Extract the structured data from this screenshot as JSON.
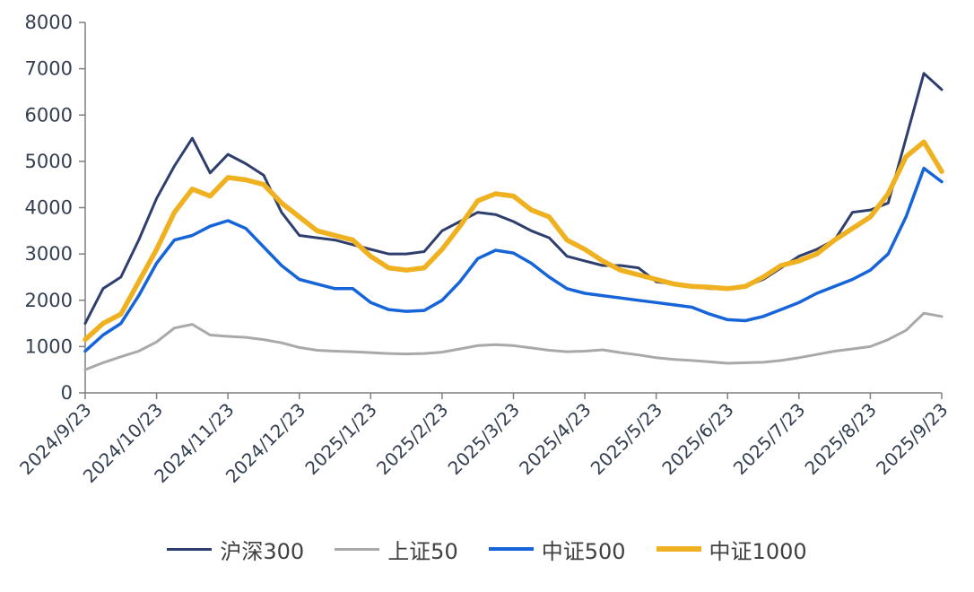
{
  "chart_data": {
    "type": "line",
    "title": "",
    "xlabel": "",
    "ylabel": "",
    "ylim": [
      0,
      8000
    ],
    "y_ticks": [
      0,
      1000,
      2000,
      3000,
      4000,
      5000,
      6000,
      7000,
      8000
    ],
    "grid": false,
    "legend_position": "bottom",
    "x_tick_labels": [
      "2024/9/23",
      "2024/10/23",
      "2024/11/23",
      "2024/12/23",
      "2025/1/23",
      "2025/2/23",
      "2025/3/23",
      "2025/4/23",
      "2025/5/23",
      "2025/6/23",
      "2025/7/23",
      "2025/8/23",
      "2025/9/23"
    ],
    "x_range_months": [
      0,
      12
    ],
    "points_per_month": 4,
    "series": [
      {
        "name": "沪深300",
        "color": "#2e3f6e",
        "width": 3,
        "values": [
          1500,
          2250,
          2500,
          3300,
          4200,
          4900,
          5500,
          4750,
          5150,
          4950,
          4700,
          3900,
          3400,
          3350,
          3300,
          3200,
          3100,
          3000,
          3000,
          3050,
          3500,
          3700,
          3900,
          3850,
          3700,
          3500,
          3350,
          2950,
          2850,
          2750,
          2750,
          2700,
          2400,
          2350,
          2300,
          2250,
          2250,
          2300,
          2450,
          2700,
          2950,
          3100,
          3300,
          3900,
          3950,
          4100,
          5500,
          6900,
          6550
        ]
      },
      {
        "name": "上证50",
        "color": "#a9a9a9",
        "width": 3,
        "values": [
          500,
          650,
          780,
          900,
          1100,
          1400,
          1480,
          1250,
          1220,
          1200,
          1150,
          1080,
          980,
          920,
          900,
          890,
          870,
          850,
          840,
          850,
          880,
          950,
          1020,
          1040,
          1020,
          970,
          920,
          890,
          900,
          930,
          870,
          820,
          760,
          720,
          700,
          670,
          640,
          650,
          660,
          700,
          760,
          830,
          900,
          950,
          1000,
          1150,
          1350,
          1720,
          1650
        ]
      },
      {
        "name": "中证500",
        "color": "#1565d8",
        "width": 3.5,
        "values": [
          900,
          1250,
          1500,
          2100,
          2800,
          3300,
          3400,
          3600,
          3720,
          3550,
          3150,
          2750,
          2450,
          2350,
          2250,
          2250,
          1950,
          1800,
          1760,
          1780,
          2000,
          2400,
          2900,
          3080,
          3020,
          2800,
          2500,
          2250,
          2150,
          2100,
          2050,
          2000,
          1950,
          1900,
          1850,
          1700,
          1580,
          1560,
          1650,
          1800,
          1950,
          2150,
          2300,
          2450,
          2650,
          3000,
          3800,
          4850,
          4560
        ]
      },
      {
        "name": "中证1000",
        "color": "#efb11f",
        "width": 5.5,
        "values": [
          1150,
          1500,
          1700,
          2400,
          3100,
          3900,
          4400,
          4250,
          4650,
          4600,
          4500,
          4100,
          3800,
          3500,
          3400,
          3300,
          2950,
          2700,
          2650,
          2700,
          3100,
          3600,
          4150,
          4300,
          4250,
          3950,
          3800,
          3300,
          3100,
          2850,
          2650,
          2550,
          2450,
          2350,
          2300,
          2280,
          2250,
          2300,
          2500,
          2750,
          2850,
          3000,
          3300,
          3550,
          3800,
          4300,
          5100,
          5420,
          4780
        ]
      }
    ],
    "axis_color": "#7f7f7f",
    "tick_label_color": "#333f50"
  }
}
